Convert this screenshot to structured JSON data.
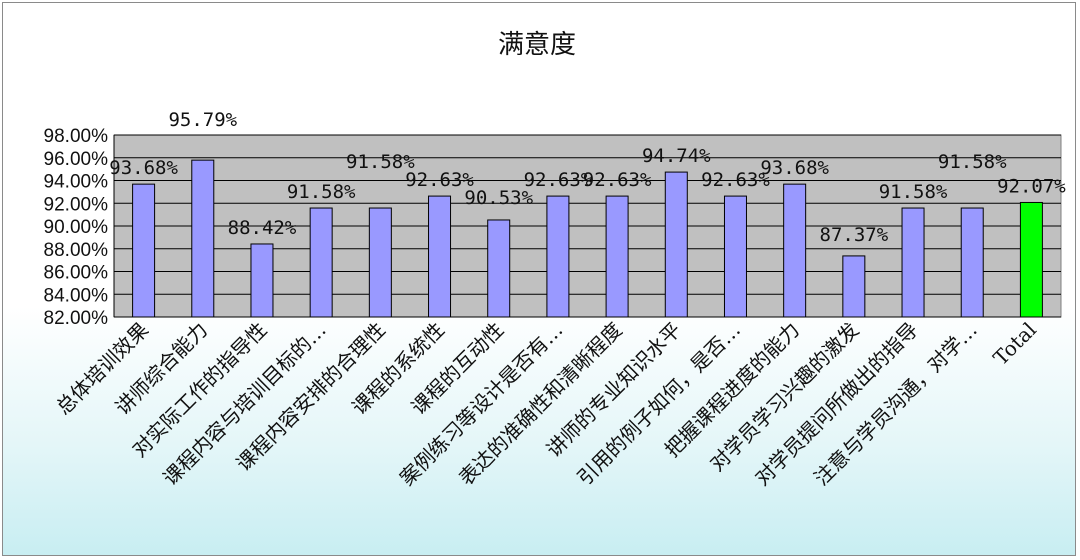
{
  "chart_data": {
    "type": "bar",
    "title": "满意度",
    "xlabel": "",
    "ylabel": "",
    "ylim": [
      82,
      98
    ],
    "ytick_step": 2,
    "ytick_labels": [
      "98.00%",
      "96.00%",
      "94.00%",
      "92.00%",
      "90.00%",
      "88.00%",
      "86.00%",
      "84.00%",
      "82.00%"
    ],
    "grid": true,
    "legend": "none",
    "categories": [
      "总体培训效果",
      "讲师综合能力",
      "对实际工作的指导性",
      "课程内容与培训目标的…",
      "课程内容安排的合理性",
      "课程的系统性",
      "课程的互动性",
      "案例练习等设计是否有…",
      "表达的准确性和清晰程度",
      "讲师的专业知识水平",
      "引用的例子如何，是否…",
      "把握课程进度的能力",
      "对学员学习兴趣的激发",
      "对学员提问所做出的指导",
      "注意与学员沟通，对学…",
      "Total"
    ],
    "values": [
      93.68,
      95.79,
      88.42,
      91.58,
      91.58,
      92.63,
      90.53,
      92.63,
      92.63,
      94.74,
      92.63,
      93.68,
      87.37,
      91.58,
      91.58,
      92.07
    ],
    "data_labels": [
      "93.68%",
      "95.79%",
      "88.42%",
      "91.58%",
      "91.58%",
      "92.63%",
      "90.53%",
      "92.63%",
      "92.63%",
      "94.74%",
      "92.63%",
      "93.68%",
      "87.37%",
      "91.58%",
      "91.58%",
      "92.07%"
    ],
    "bar_color": "#9999ff",
    "highlight_color": "#00ff00",
    "plot_background": "#c0c0c0",
    "grid_color": "#000000"
  }
}
